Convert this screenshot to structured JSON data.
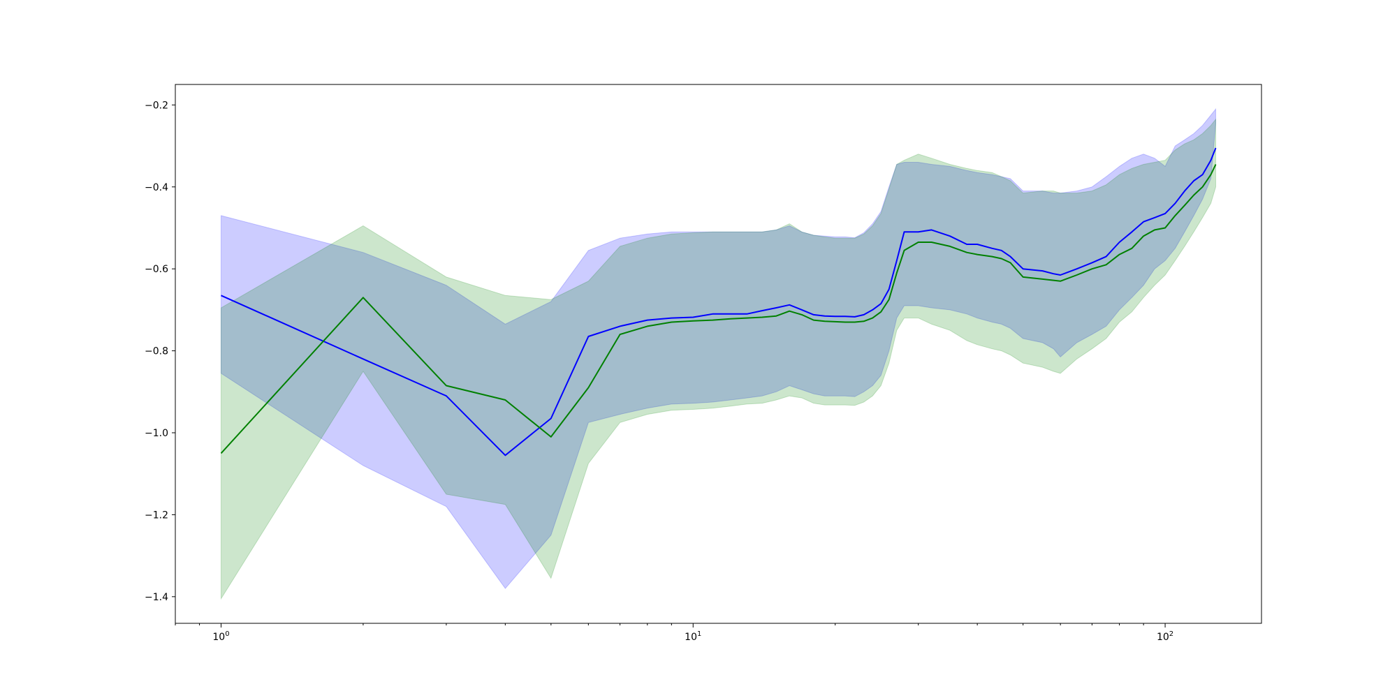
{
  "chart_data": {
    "type": "line",
    "title": "",
    "xlabel": "",
    "ylabel": "",
    "xscale": "log",
    "xlim": [
      0.8,
      160
    ],
    "ylim": [
      -1.465,
      -0.15
    ],
    "grid": false,
    "legend": "none",
    "x_ticks": [
      {
        "base": "10",
        "exp": "0",
        "value": 1
      },
      {
        "base": "10",
        "exp": "1",
        "value": 10
      },
      {
        "base": "10",
        "exp": "2",
        "value": 100
      }
    ],
    "y_ticks": [
      {
        "label": "−0.2",
        "value": -0.2
      },
      {
        "label": "−0.4",
        "value": -0.4
      },
      {
        "label": "−0.6",
        "value": -0.6
      },
      {
        "label": "−0.8",
        "value": -0.8
      },
      {
        "label": "−1.0",
        "value": -1.0
      },
      {
        "label": "−1.2",
        "value": -1.2
      },
      {
        "label": "−1.4",
        "value": -1.4
      }
    ],
    "x": [
      1,
      2,
      3,
      4,
      5,
      6,
      7,
      8,
      9,
      10,
      11,
      12,
      13,
      14,
      15,
      16,
      17,
      18,
      19,
      20,
      21,
      22,
      23,
      24,
      25,
      26,
      27,
      28,
      30,
      32,
      35,
      38,
      40,
      43,
      45,
      47,
      50,
      55,
      58,
      60,
      65,
      70,
      75,
      80,
      85,
      90,
      95,
      100,
      105,
      110,
      115,
      120,
      125,
      128
    ],
    "series": [
      {
        "color": "#0000ff",
        "band_color": "#0000ff",
        "band_opacity": 0.2,
        "values": [
          -0.665,
          -0.82,
          -0.91,
          -1.055,
          -0.965,
          -0.765,
          -0.74,
          -0.725,
          -0.72,
          -0.718,
          -0.71,
          -0.71,
          -0.71,
          -0.702,
          -0.695,
          -0.688,
          -0.7,
          -0.712,
          -0.715,
          -0.716,
          -0.716,
          -0.717,
          -0.712,
          -0.7,
          -0.685,
          -0.65,
          -0.58,
          -0.51,
          -0.51,
          -0.505,
          -0.52,
          -0.54,
          -0.54,
          -0.55,
          -0.555,
          -0.57,
          -0.6,
          -0.605,
          -0.612,
          -0.615,
          -0.6,
          -0.585,
          -0.57,
          -0.535,
          -0.51,
          -0.485,
          -0.475,
          -0.465,
          -0.44,
          -0.41,
          -0.385,
          -0.37,
          -0.335,
          -0.305
        ],
        "lower": [
          -0.855,
          -1.08,
          -1.18,
          -1.38,
          -1.25,
          -0.975,
          -0.955,
          -0.94,
          -0.93,
          -0.928,
          -0.925,
          -0.92,
          -0.915,
          -0.91,
          -0.9,
          -0.885,
          -0.895,
          -0.905,
          -0.91,
          -0.91,
          -0.91,
          -0.912,
          -0.9,
          -0.885,
          -0.86,
          -0.8,
          -0.72,
          -0.69,
          -0.69,
          -0.695,
          -0.7,
          -0.71,
          -0.72,
          -0.73,
          -0.735,
          -0.745,
          -0.77,
          -0.78,
          -0.795,
          -0.815,
          -0.78,
          -0.76,
          -0.74,
          -0.7,
          -0.67,
          -0.64,
          -0.6,
          -0.58,
          -0.55,
          -0.51,
          -0.47,
          -0.43,
          -0.38,
          -0.245
        ],
        "upper": [
          -0.47,
          -0.56,
          -0.64,
          -0.735,
          -0.68,
          -0.555,
          -0.525,
          -0.515,
          -0.51,
          -0.51,
          -0.51,
          -0.51,
          -0.51,
          -0.51,
          -0.505,
          -0.495,
          -0.51,
          -0.518,
          -0.52,
          -0.522,
          -0.522,
          -0.524,
          -0.512,
          -0.49,
          -0.46,
          -0.4,
          -0.345,
          -0.34,
          -0.34,
          -0.345,
          -0.35,
          -0.36,
          -0.365,
          -0.37,
          -0.375,
          -0.38,
          -0.41,
          -0.41,
          -0.415,
          -0.415,
          -0.41,
          -0.4,
          -0.375,
          -0.35,
          -0.33,
          -0.32,
          -0.33,
          -0.35,
          -0.3,
          -0.285,
          -0.27,
          -0.25,
          -0.225,
          -0.21
        ]
      },
      {
        "color": "#008000",
        "band_color": "#008000",
        "band_opacity": 0.2,
        "values": [
          -1.05,
          -0.67,
          -0.885,
          -0.92,
          -1.01,
          -0.89,
          -0.76,
          -0.74,
          -0.73,
          -0.727,
          -0.725,
          -0.722,
          -0.72,
          -0.718,
          -0.715,
          -0.703,
          -0.712,
          -0.725,
          -0.728,
          -0.729,
          -0.73,
          -0.73,
          -0.728,
          -0.72,
          -0.705,
          -0.675,
          -0.61,
          -0.555,
          -0.535,
          -0.535,
          -0.545,
          -0.56,
          -0.565,
          -0.57,
          -0.575,
          -0.585,
          -0.62,
          -0.625,
          -0.628,
          -0.63,
          -0.615,
          -0.6,
          -0.59,
          -0.565,
          -0.55,
          -0.52,
          -0.505,
          -0.5,
          -0.47,
          -0.445,
          -0.42,
          -0.4,
          -0.37,
          -0.345
        ],
        "lower": [
          -1.405,
          -0.85,
          -1.15,
          -1.175,
          -1.355,
          -1.075,
          -0.975,
          -0.955,
          -0.945,
          -0.943,
          -0.94,
          -0.935,
          -0.93,
          -0.928,
          -0.92,
          -0.91,
          -0.915,
          -0.928,
          -0.932,
          -0.932,
          -0.932,
          -0.933,
          -0.925,
          -0.91,
          -0.885,
          -0.83,
          -0.75,
          -0.72,
          -0.72,
          -0.735,
          -0.75,
          -0.775,
          -0.785,
          -0.795,
          -0.8,
          -0.81,
          -0.83,
          -0.84,
          -0.85,
          -0.855,
          -0.82,
          -0.795,
          -0.77,
          -0.73,
          -0.705,
          -0.67,
          -0.64,
          -0.615,
          -0.58,
          -0.545,
          -0.51,
          -0.475,
          -0.44,
          -0.4
        ],
        "upper": [
          -0.695,
          -0.495,
          -0.62,
          -0.665,
          -0.675,
          -0.63,
          -0.545,
          -0.525,
          -0.515,
          -0.512,
          -0.51,
          -0.51,
          -0.51,
          -0.51,
          -0.505,
          -0.49,
          -0.51,
          -0.518,
          -0.522,
          -0.525,
          -0.525,
          -0.525,
          -0.515,
          -0.495,
          -0.465,
          -0.405,
          -0.345,
          -0.335,
          -0.32,
          -0.33,
          -0.345,
          -0.355,
          -0.36,
          -0.365,
          -0.375,
          -0.385,
          -0.415,
          -0.41,
          -0.41,
          -0.415,
          -0.415,
          -0.41,
          -0.395,
          -0.37,
          -0.355,
          -0.345,
          -0.34,
          -0.335,
          -0.31,
          -0.295,
          -0.285,
          -0.27,
          -0.25,
          -0.235
        ]
      }
    ]
  }
}
